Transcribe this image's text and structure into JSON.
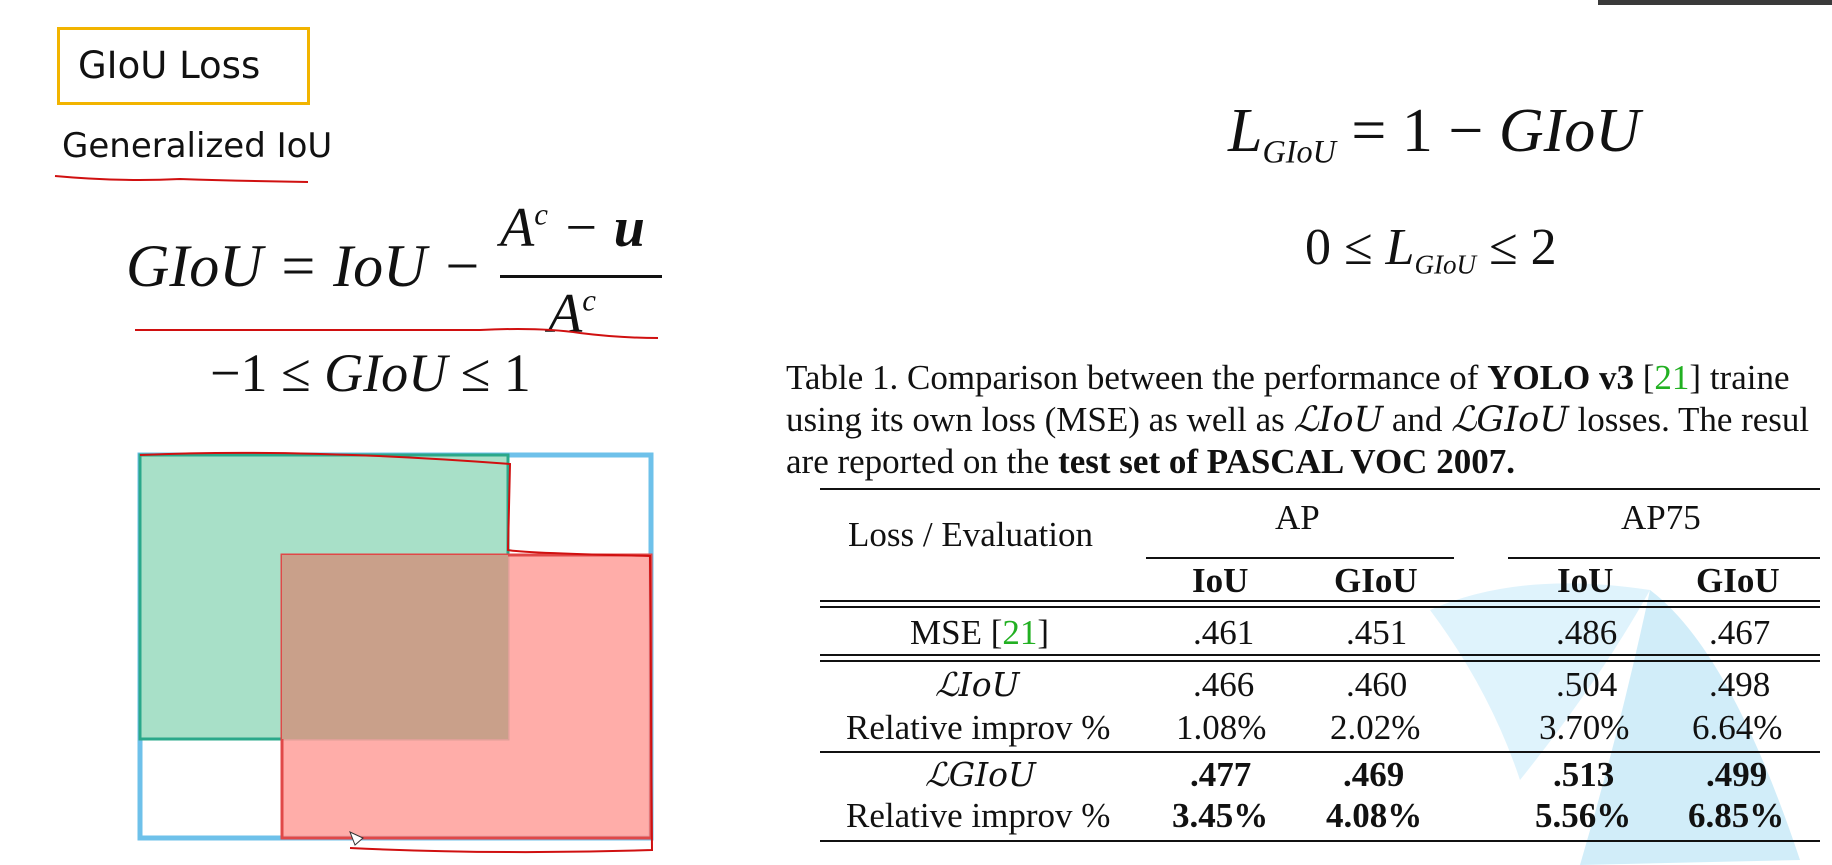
{
  "slide": {
    "title": "GIoU Loss",
    "subtitle": "Generalized IoU"
  },
  "formulas": {
    "giou_lhs": "GIoU = IoU −",
    "giou_numerator": "A^c − u",
    "giou_denominator": "A^c",
    "giou_range": "−1 ≤ GIoU ≤ 1",
    "loss": "L_GIoU = 1 − GIoU",
    "loss_range": "0 ≤ L_GIoU ≤ 2"
  },
  "caption": {
    "line1_a": "Table 1. Comparison between the performance of ",
    "line1_bold": "YOLO v3",
    "line1_b": " [",
    "line1_ref": "21",
    "line1_c": "] traine",
    "line2_a": "using its own loss (MSE) as well as ",
    "line2_b": " and ",
    "line2_c": " losses. The resul",
    "line3_a": "are reported on the ",
    "line3_bold": "test set of PASCAL VOC 2007.",
    "liou": "ℒIoU",
    "lgiou": "ℒGIoU"
  },
  "table": {
    "header_loss": "Loss / Evaluation",
    "header_ap": "AP",
    "header_ap75": "AP75",
    "sub_iou": "IoU",
    "sub_giou": "GIoU",
    "rows": [
      {
        "label": "MSE [",
        "ref": "21",
        "label_end": "]",
        "v": [
          ".461",
          ".451",
          ".486",
          ".467"
        ],
        "bold": false
      },
      {
        "label": "ℒIoU",
        "v": [
          ".466",
          ".460",
          ".504",
          ".498"
        ],
        "bold": false
      },
      {
        "label": "Relative improv %",
        "v": [
          "1.08%",
          "2.02%",
          "3.70%",
          "6.64%"
        ],
        "bold": false
      },
      {
        "label": "ℒGIoU",
        "v": [
          ".477",
          ".469",
          ".513",
          ".499"
        ],
        "bold": true
      },
      {
        "label": "Relative improv %",
        "v": [
          "3.45%",
          "4.08%",
          "5.56%",
          "6.85%"
        ],
        "bold": true
      }
    ]
  },
  "colors": {
    "title_border": "#f2b400",
    "green_box": "#a8e0c8",
    "red_box": "#ff9f9a",
    "blue_box": "#6ec1ea",
    "annotation": "#d01010",
    "ref_green": "#22b022"
  }
}
